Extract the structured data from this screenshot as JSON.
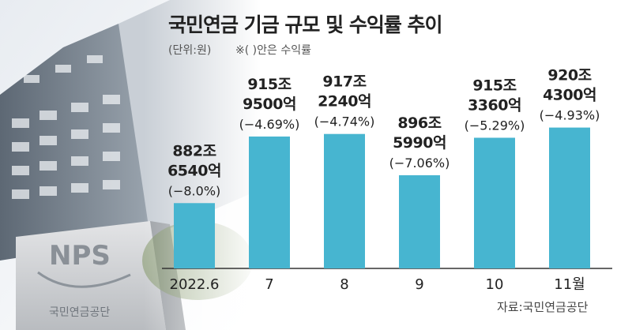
{
  "title": "국민연금 기금 규모 및 수익률 추이",
  "unit_note": "(단위:원)",
  "paren_note": "※( )안은 수익률",
  "source": "자료:국민연금공단",
  "logo": {
    "text": "NPS",
    "org_name": "국민연금공단"
  },
  "colors": {
    "bar": "#47b5d0",
    "axis": "#333333",
    "text": "#222222"
  },
  "chart_data": {
    "type": "bar",
    "categories": [
      "2022.6",
      "7",
      "8",
      "9",
      "10",
      "11월"
    ],
    "values": [
      882.654,
      915.95,
      917.224,
      896.599,
      915.336,
      920.43
    ],
    "value_labels": [
      [
        "882조",
        "6540억"
      ],
      [
        "915조",
        "9500억"
      ],
      [
        "917조",
        "2240억"
      ],
      [
        "896조",
        "5990억"
      ],
      [
        "915조",
        "3360억"
      ],
      [
        "920조",
        "4300억"
      ]
    ],
    "returns": [
      "(−8.0%)",
      "(−4.69%)",
      "(−4.74%)",
      "(−7.06%)",
      "(−5.29%)",
      "(−4.93%)"
    ],
    "ylim": [
      850,
      925
    ],
    "title": "국민연금 기금 규모 및 수익률 추이",
    "xlabel": "",
    "ylabel": ""
  }
}
